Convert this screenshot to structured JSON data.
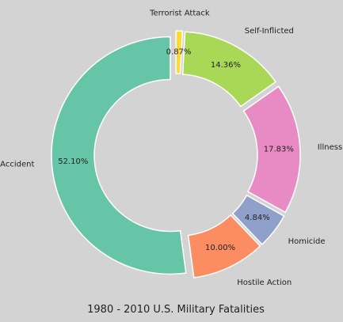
{
  "chart_data": {
    "type": "pie",
    "title": "1980 - 2010 U.S. Military Fatalities",
    "categories": [
      "Accident",
      "Hostile Action",
      "Homicide",
      "Illness",
      "Self-Inflicted",
      "Terrorist Attack"
    ],
    "values": [
      52.1,
      10.0,
      4.84,
      17.83,
      14.36,
      0.87
    ],
    "value_labels": [
      "52.10%",
      "10.00%",
      "4.84%",
      "17.83%",
      "14.36%",
      "0.87%"
    ],
    "colors": [
      "#66c5a6",
      "#fc8d62",
      "#8fa1cb",
      "#e88ac4",
      "#a9d856",
      "#ffd92f"
    ],
    "donut": true,
    "exploded": true,
    "legend": "none",
    "start": "top",
    "direction": "counterclockwise"
  }
}
